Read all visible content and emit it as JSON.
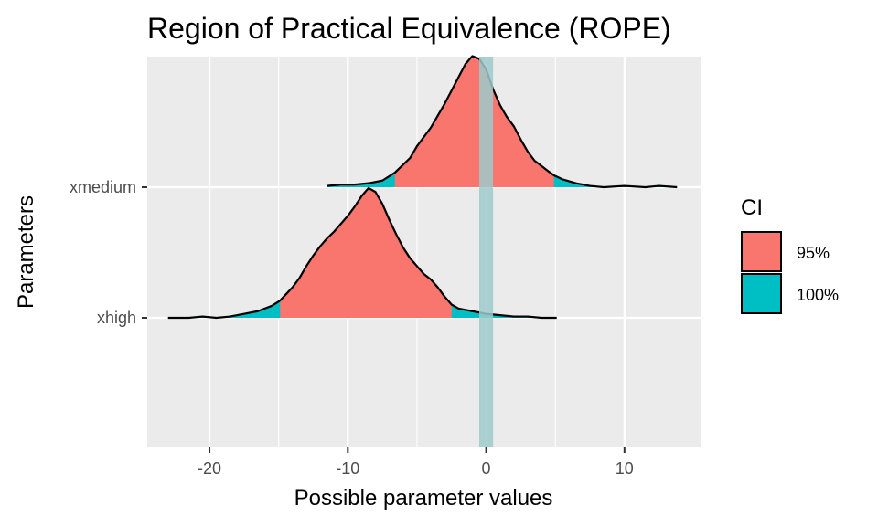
{
  "chart_data": {
    "type": "area",
    "title": "Region of Practical Equivalence (ROPE)",
    "xlabel": "Possible parameter values",
    "ylabel": "Parameters",
    "xlim": [
      -24.5,
      15.5
    ],
    "x_ticks": [
      -20,
      -10,
      0,
      10
    ],
    "x_tick_labels": [
      "-20",
      "-10",
      "0",
      "10"
    ],
    "categories": [
      "xmedium",
      "xhigh"
    ],
    "grid": true,
    "rope": [
      -0.5,
      0.5
    ],
    "legend": {
      "title": "CI",
      "position": "right",
      "entries": [
        {
          "label": "95%",
          "color": "#F8766D"
        },
        {
          "label": "100%",
          "color": "#00BFC4"
        }
      ]
    },
    "colors": {
      "ci95": "#F8766D",
      "ci100": "#00BFC4",
      "rope": "#9ECACB",
      "panel": "#EBEBEB",
      "grid": "#FFFFFF"
    },
    "series": [
      {
        "category": "xmedium",
        "range": [
          -11.5,
          13.8
        ],
        "ci95": [
          -6.6,
          4.9
        ],
        "density": [
          [
            -11.5,
            0.01
          ],
          [
            -10.5,
            0.02
          ],
          [
            -9.5,
            0.02
          ],
          [
            -8.5,
            0.03
          ],
          [
            -7.5,
            0.05
          ],
          [
            -6.6,
            0.11
          ],
          [
            -6.0,
            0.17
          ],
          [
            -5.5,
            0.22
          ],
          [
            -5.0,
            0.31
          ],
          [
            -4.5,
            0.38
          ],
          [
            -4.0,
            0.45
          ],
          [
            -3.5,
            0.54
          ],
          [
            -3.0,
            0.63
          ],
          [
            -2.5,
            0.73
          ],
          [
            -2.0,
            0.83
          ],
          [
            -1.5,
            0.93
          ],
          [
            -1.0,
            0.99
          ],
          [
            -0.5,
            0.97
          ],
          [
            0.0,
            0.89
          ],
          [
            0.5,
            0.74
          ],
          [
            1.0,
            0.62
          ],
          [
            1.5,
            0.53
          ],
          [
            2.0,
            0.46
          ],
          [
            2.5,
            0.36
          ],
          [
            3.0,
            0.27
          ],
          [
            3.5,
            0.2
          ],
          [
            4.0,
            0.16
          ],
          [
            4.5,
            0.12
          ],
          [
            4.9,
            0.09
          ],
          [
            5.5,
            0.06
          ],
          [
            6.5,
            0.03
          ],
          [
            7.5,
            0.01
          ],
          [
            8.5,
            0.0
          ],
          [
            10.0,
            0.01
          ],
          [
            11.5,
            0.0
          ],
          [
            12.5,
            0.01
          ],
          [
            13.8,
            0.0
          ]
        ]
      },
      {
        "category": "xhigh",
        "range": [
          -23.0,
          5.1
        ],
        "ci95": [
          -14.9,
          -2.5
        ],
        "density": [
          [
            -23.0,
            0.0
          ],
          [
            -21.5,
            0.0
          ],
          [
            -20.5,
            0.01
          ],
          [
            -19.5,
            0.0
          ],
          [
            -18.5,
            0.01
          ],
          [
            -17.5,
            0.03
          ],
          [
            -16.5,
            0.05
          ],
          [
            -15.5,
            0.09
          ],
          [
            -14.9,
            0.13
          ],
          [
            -14.0,
            0.23
          ],
          [
            -13.5,
            0.3
          ],
          [
            -13.0,
            0.39
          ],
          [
            -12.5,
            0.47
          ],
          [
            -12.0,
            0.54
          ],
          [
            -11.5,
            0.6
          ],
          [
            -11.0,
            0.65
          ],
          [
            -10.5,
            0.71
          ],
          [
            -10.0,
            0.77
          ],
          [
            -9.5,
            0.84
          ],
          [
            -9.0,
            0.92
          ],
          [
            -8.5,
            0.98
          ],
          [
            -8.0,
            0.95
          ],
          [
            -7.5,
            0.86
          ],
          [
            -7.0,
            0.74
          ],
          [
            -6.5,
            0.63
          ],
          [
            -6.0,
            0.53
          ],
          [
            -5.5,
            0.45
          ],
          [
            -5.0,
            0.39
          ],
          [
            -4.5,
            0.33
          ],
          [
            -4.0,
            0.29
          ],
          [
            -3.5,
            0.23
          ],
          [
            -3.0,
            0.16
          ],
          [
            -2.5,
            0.1
          ],
          [
            -2.0,
            0.07
          ],
          [
            -1.5,
            0.06
          ],
          [
            -1.0,
            0.05
          ],
          [
            -0.5,
            0.04
          ],
          [
            0.0,
            0.03
          ],
          [
            1.0,
            0.02
          ],
          [
            2.0,
            0.01
          ],
          [
            3.0,
            0.01
          ],
          [
            4.0,
            0.0
          ],
          [
            5.1,
            0.0
          ]
        ]
      }
    ]
  }
}
